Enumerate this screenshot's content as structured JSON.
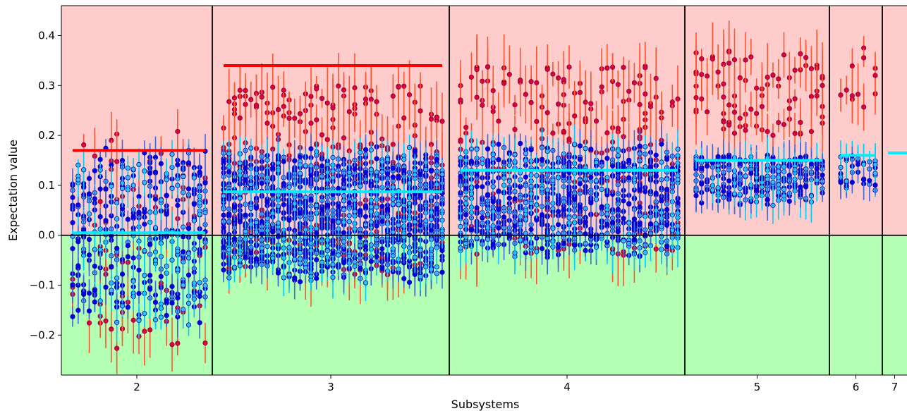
{
  "chart_data": {
    "type": "scatter",
    "title": "",
    "xlabel": "Subsystems",
    "ylabel": "Expectation value",
    "ylim": [
      -0.28,
      0.46
    ],
    "yticks": [
      -0.2,
      -0.1,
      0.0,
      0.1,
      0.2,
      0.3,
      0.4
    ],
    "ytick_labels": [
      "−0.2",
      "−0.1",
      "0.0",
      "0.1",
      "0.2",
      "0.3",
      "0.4"
    ],
    "background": {
      "positive_color": "#ffcccc",
      "negative_color": "#b3ffb3"
    },
    "colors": {
      "red_points": "#dd0044",
      "red_errorbars": "#ff5533",
      "red_mean": "#ff0000",
      "blue_points": "#0000ee",
      "blue_errorbars": "#4466dd",
      "blue_mean": "#00eeff",
      "cyan_points": "#33bbff",
      "cyan_errorbars": "#00ccff"
    },
    "groups": [
      {
        "label": "2",
        "red_mean": 0.17,
        "blue_mean": 0.005,
        "red_range": [
          -0.23,
          0.21
        ],
        "blue_range": [
          -0.22,
          0.22
        ],
        "red_count": 90,
        "blue_count": 420
      },
      {
        "label": "3",
        "red_mean": 0.34,
        "blue_mean": 0.087,
        "red_range": [
          -0.08,
          0.3
        ],
        "blue_range": [
          -0.12,
          0.205
        ],
        "red_count": 380,
        "blue_count": 1400
      },
      {
        "label": "4",
        "red_mean": null,
        "blue_mean": 0.13,
        "red_range": [
          -0.04,
          0.34
        ],
        "blue_range": [
          -0.07,
          0.21
        ],
        "red_count": 260,
        "blue_count": 950
      },
      {
        "label": "5",
        "red_mean": null,
        "blue_mean": 0.15,
        "red_range": [
          0.2,
          0.37
        ],
        "blue_range": [
          0.05,
          0.175
        ],
        "red_count": 90,
        "blue_count": 330
      },
      {
        "label": "6",
        "red_mean": null,
        "blue_mean": 0.16,
        "red_range": [
          0.25,
          0.385
        ],
        "blue_range": [
          0.08,
          0.17
        ],
        "red_count": 12,
        "blue_count": 40
      },
      {
        "label": "7",
        "red_mean": null,
        "blue_mean": 0.165,
        "red_range": [
          0.165,
          0.165
        ],
        "blue_range": [
          0.165,
          0.165
        ],
        "red_count": 0,
        "blue_count": 0
      }
    ]
  }
}
